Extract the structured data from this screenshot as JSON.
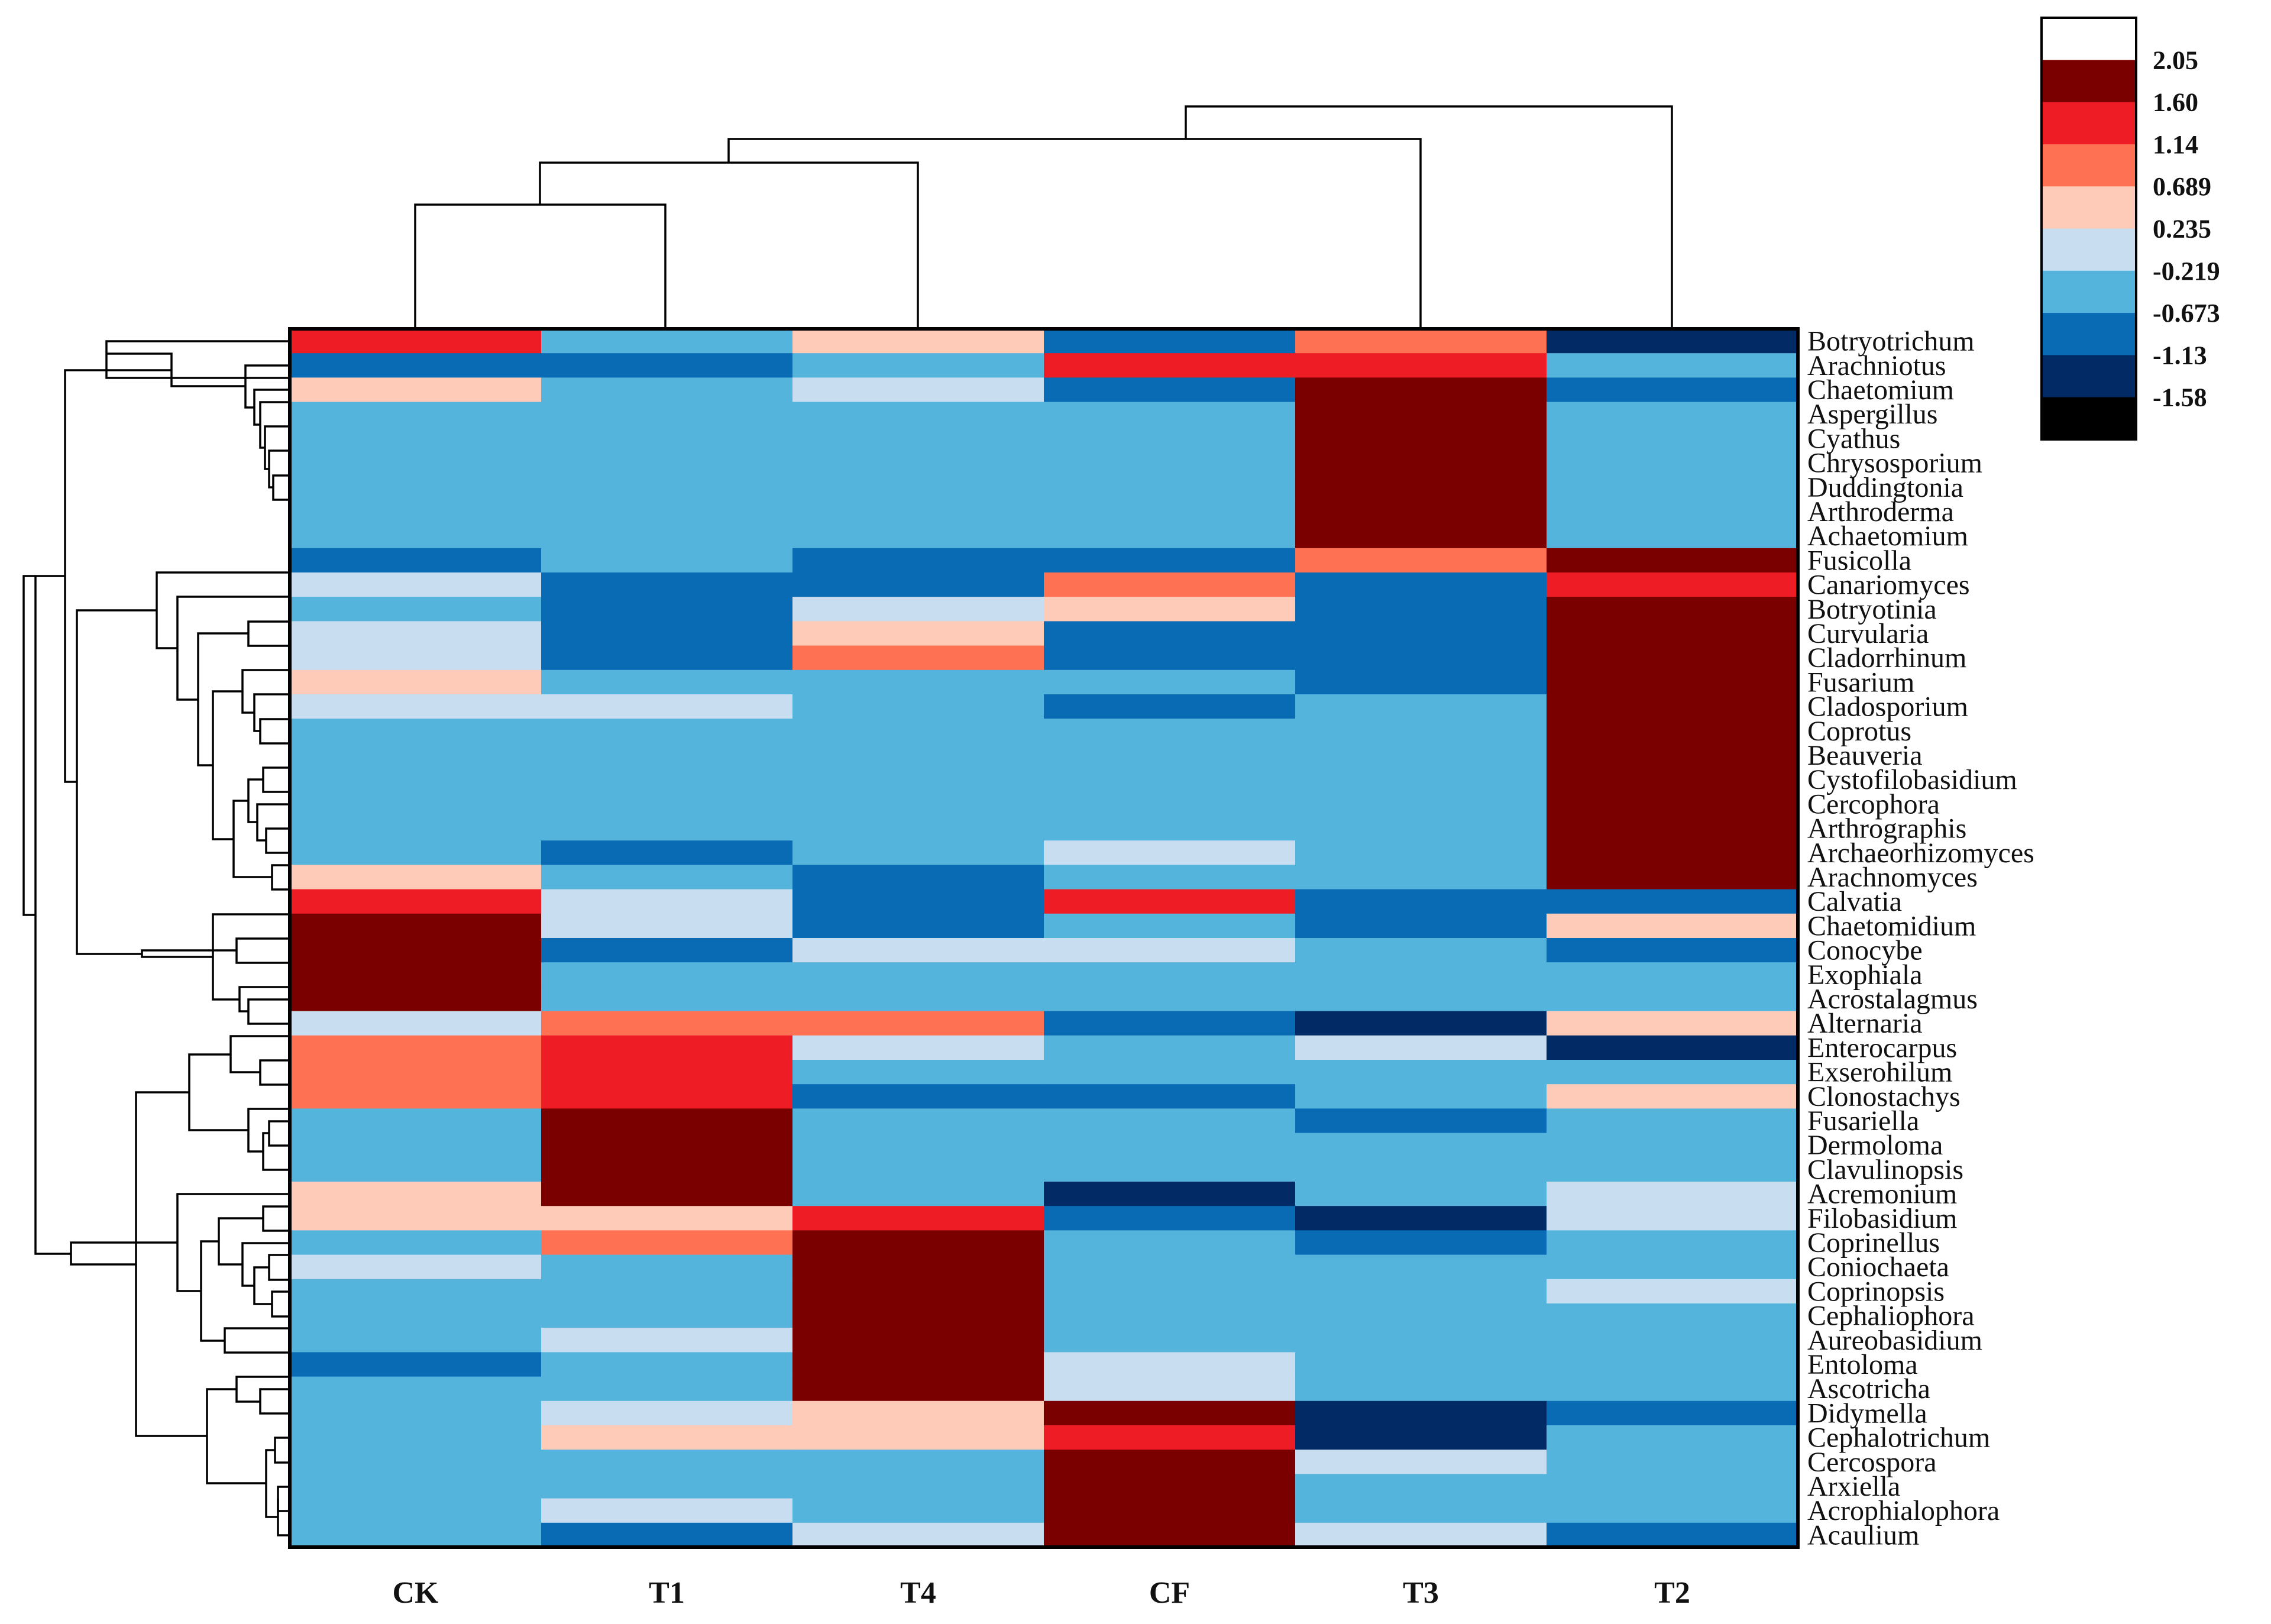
{
  "chart_data": {
    "type": "heatmap",
    "columns": [
      "CK",
      "T1",
      "T4",
      "CF",
      "T3",
      "T2"
    ],
    "rows": [
      "Botryotrichum",
      "Arachniotus",
      "Chaetomium",
      "Aspergillus",
      "Cyathus",
      "Chrysosporium",
      "Duddingtonia",
      "Arthroderma",
      "Achaetomium",
      "Fusicolla",
      "Canariomyces",
      "Botryotinia",
      "Curvularia",
      "Cladorrhinum",
      "Fusarium",
      "Cladosporium",
      "Coprotus",
      "Beauveria",
      "Cystofilobasidium",
      "Cercophora",
      "Arthrographis",
      "Archaeorhizomyces",
      "Arachnomyces",
      "Calvatia",
      "Chaetomidium",
      "Conocybe",
      "Exophiala",
      "Acrostalagmus",
      "Alternaria",
      "Enterocarpus",
      "Exserohilum",
      "Clonostachys",
      "Fusariella",
      "Dermoloma",
      "Clavulinopsis",
      "Acremonium",
      "Filobasidium",
      "Coprinellus",
      "Coniochaeta",
      "Coprinopsis",
      "Cephaliophora",
      "Aureobasidium",
      "Entoloma",
      "Ascotricha",
      "Didymella",
      "Cephalotrichum",
      "Cercospora",
      "Arxiella",
      "Acrophialophora",
      "Acaulium"
    ],
    "values": [
      [
        1.4,
        -0.45,
        0.45,
        -0.9,
        0.9,
        -1.4
      ],
      [
        -0.9,
        -0.9,
        -0.45,
        1.4,
        1.4,
        -0.45
      ],
      [
        0.45,
        -0.45,
        0.0,
        -0.9,
        2.0,
        -0.9
      ],
      [
        -0.45,
        -0.45,
        -0.45,
        -0.45,
        2.0,
        -0.45
      ],
      [
        -0.45,
        -0.45,
        -0.45,
        -0.45,
        2.0,
        -0.45
      ],
      [
        -0.45,
        -0.45,
        -0.45,
        -0.45,
        2.0,
        -0.45
      ],
      [
        -0.45,
        -0.45,
        -0.45,
        -0.45,
        2.0,
        -0.45
      ],
      [
        -0.45,
        -0.45,
        -0.45,
        -0.45,
        2.0,
        -0.45
      ],
      [
        -0.45,
        -0.45,
        -0.45,
        -0.45,
        2.0,
        -0.45
      ],
      [
        -0.9,
        -0.45,
        -0.9,
        -0.9,
        0.9,
        2.0
      ],
      [
        0.0,
        -0.9,
        -0.9,
        0.9,
        -0.9,
        1.4
      ],
      [
        -0.45,
        -0.9,
        0.0,
        0.45,
        -0.9,
        2.0
      ],
      [
        0.0,
        -0.9,
        0.45,
        -0.9,
        -0.9,
        2.0
      ],
      [
        0.0,
        -0.9,
        0.9,
        -0.9,
        -0.9,
        2.0
      ],
      [
        0.45,
        -0.45,
        -0.45,
        -0.45,
        -0.9,
        2.0
      ],
      [
        0.0,
        0.0,
        -0.45,
        -0.9,
        -0.45,
        2.0
      ],
      [
        -0.45,
        -0.45,
        -0.45,
        -0.45,
        -0.45,
        2.0
      ],
      [
        -0.45,
        -0.45,
        -0.45,
        -0.45,
        -0.45,
        2.0
      ],
      [
        -0.45,
        -0.45,
        -0.45,
        -0.45,
        -0.45,
        2.0
      ],
      [
        -0.45,
        -0.45,
        -0.45,
        -0.45,
        -0.45,
        2.0
      ],
      [
        -0.45,
        -0.45,
        -0.45,
        -0.45,
        -0.45,
        2.0
      ],
      [
        -0.45,
        -0.9,
        -0.45,
        0.0,
        -0.45,
        2.0
      ],
      [
        0.45,
        -0.45,
        -0.9,
        -0.45,
        -0.45,
        2.0
      ],
      [
        1.4,
        0.0,
        -0.9,
        1.4,
        -0.9,
        -0.9
      ],
      [
        2.0,
        0.0,
        -0.9,
        -0.45,
        -0.9,
        0.45
      ],
      [
        2.0,
        -0.9,
        0.0,
        0.0,
        -0.45,
        -0.9
      ],
      [
        2.0,
        -0.45,
        -0.45,
        -0.45,
        -0.45,
        -0.45
      ],
      [
        2.0,
        -0.45,
        -0.45,
        -0.45,
        -0.45,
        -0.45
      ],
      [
        0.0,
        0.9,
        0.9,
        -0.9,
        -1.4,
        0.45
      ],
      [
        0.9,
        1.4,
        0.0,
        -0.45,
        0.0,
        -1.4
      ],
      [
        0.9,
        1.4,
        -0.45,
        -0.45,
        -0.45,
        -0.45
      ],
      [
        0.9,
        1.4,
        -0.9,
        -0.9,
        -0.45,
        0.45
      ],
      [
        -0.45,
        2.0,
        -0.45,
        -0.45,
        -0.9,
        -0.45
      ],
      [
        -0.45,
        2.0,
        -0.45,
        -0.45,
        -0.45,
        -0.45
      ],
      [
        -0.45,
        2.0,
        -0.45,
        -0.45,
        -0.45,
        -0.45
      ],
      [
        0.45,
        2.0,
        -0.45,
        -1.4,
        -0.45,
        0.0
      ],
      [
        0.45,
        0.45,
        1.4,
        -0.9,
        -1.4,
        0.0
      ],
      [
        -0.45,
        0.9,
        2.0,
        -0.45,
        -0.9,
        -0.45
      ],
      [
        0.0,
        -0.45,
        2.0,
        -0.45,
        -0.45,
        -0.45
      ],
      [
        -0.45,
        -0.45,
        2.0,
        -0.45,
        -0.45,
        0.0
      ],
      [
        -0.45,
        -0.45,
        2.0,
        -0.45,
        -0.45,
        -0.45
      ],
      [
        -0.45,
        0.0,
        2.0,
        -0.45,
        -0.45,
        -0.45
      ],
      [
        -0.9,
        -0.45,
        2.0,
        0.0,
        -0.45,
        -0.45
      ],
      [
        -0.45,
        -0.45,
        2.0,
        0.0,
        -0.45,
        -0.45
      ],
      [
        -0.45,
        0.0,
        0.45,
        2.0,
        -1.4,
        -0.9
      ],
      [
        -0.45,
        0.45,
        0.45,
        1.4,
        -1.4,
        -0.45
      ],
      [
        -0.45,
        -0.45,
        -0.45,
        2.0,
        0.0,
        -0.45
      ],
      [
        -0.45,
        -0.45,
        -0.45,
        2.0,
        -0.45,
        -0.45
      ],
      [
        -0.45,
        0.0,
        -0.45,
        2.0,
        -0.45,
        -0.45
      ],
      [
        -0.45,
        -0.9,
        0.0,
        2.0,
        0.0,
        -0.9
      ]
    ],
    "color_scale": {
      "ticks": [
        "2.05",
        "1.60",
        "1.14",
        "0.689",
        "0.235",
        "-0.219",
        "-0.673",
        "-1.13",
        "-1.58"
      ],
      "colors": [
        "#ffffff",
        "#7a0000",
        "#ee1c24",
        "#ff7153",
        "#fecbb8",
        "#c8ddf0",
        "#55b4dc",
        "#0a6bb5",
        "#022a65",
        "#000000"
      ],
      "bounds": [
        2.5,
        2.05,
        1.6,
        1.14,
        0.689,
        0.235,
        -0.219,
        -0.673,
        -1.13,
        -1.58,
        -2.0
      ]
    },
    "column_dendrogram": "hierarchical clustering of samples",
    "row_dendrogram": "hierarchical clustering of genera",
    "legend": "top-right"
  }
}
